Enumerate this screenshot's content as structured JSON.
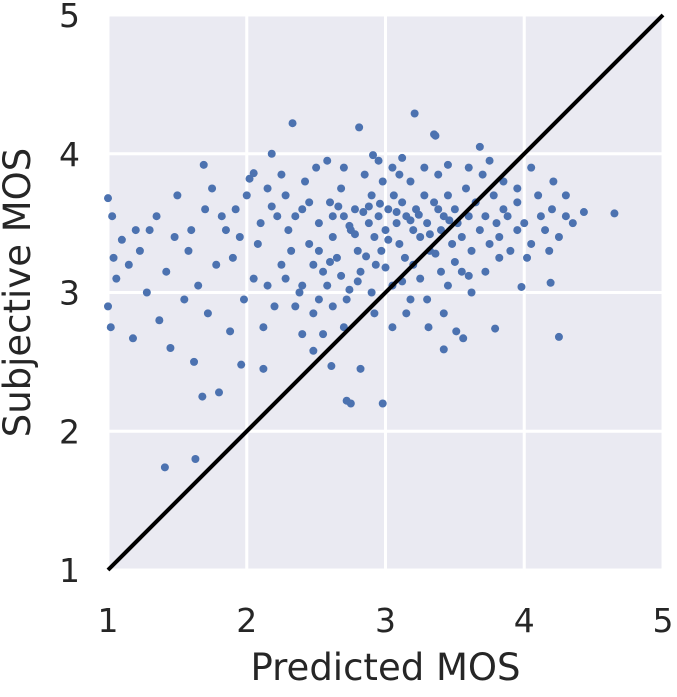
{
  "chart_data": {
    "type": "scatter",
    "title": "",
    "xlabel": "Predicted MOS",
    "ylabel": "Subjective MOS",
    "xlim": [
      1,
      5
    ],
    "ylim": [
      1,
      5
    ],
    "xticks": [
      "1",
      "2",
      "3",
      "4",
      "5"
    ],
    "yticks": [
      "1",
      "2",
      "3",
      "4",
      "5"
    ],
    "grid": true,
    "legend": "none",
    "colors": {
      "background": "#eaeaf2",
      "grid": "#ffffff",
      "points": "#4c72b0",
      "reference_line": "#000000"
    },
    "reference_line": {
      "x": [
        1,
        5
      ],
      "y": [
        1,
        5
      ],
      "label": ""
    },
    "series": [
      {
        "points": [
          [
            2.33,
            4.22
          ],
          [
            3.21,
            4.29
          ],
          [
            2.81,
            4.19
          ],
          [
            3.35,
            4.14
          ],
          [
            3.36,
            4.13
          ],
          [
            3.68,
            4.05
          ],
          [
            2.18,
            4.0
          ],
          [
            2.91,
            3.99
          ],
          [
            3.12,
            3.97
          ],
          [
            1.69,
            3.92
          ],
          [
            2.05,
            3.86
          ],
          [
            4.21,
            3.8
          ],
          [
            4.65,
            3.57
          ],
          [
            4.43,
            3.58
          ],
          [
            4.25,
            2.68
          ],
          [
            3.98,
            3.04
          ],
          [
            4.19,
            3.07
          ],
          [
            3.79,
            2.74
          ],
          [
            3.51,
            2.72
          ],
          [
            3.31,
            2.75
          ],
          [
            3.56,
            2.67
          ],
          [
            3.42,
            2.59
          ],
          [
            1.41,
            1.74
          ],
          [
            1.63,
            1.8
          ],
          [
            1.68,
            2.25
          ],
          [
            1.8,
            2.28
          ],
          [
            2.61,
            2.47
          ],
          [
            2.82,
            2.45
          ],
          [
            2.72,
            2.22
          ],
          [
            2.75,
            2.2
          ],
          [
            2.98,
            2.2
          ],
          [
            2.12,
            2.45
          ],
          [
            2.48,
            2.58
          ],
          [
            1.18,
            2.67
          ],
          [
            1.45,
            2.6
          ],
          [
            1.62,
            2.5
          ],
          [
            1.96,
            2.48
          ],
          [
            1.0,
            3.68
          ],
          [
            1.03,
            3.55
          ],
          [
            1.04,
            3.25
          ],
          [
            1.0,
            2.9
          ],
          [
            1.02,
            2.75
          ],
          [
            1.1,
            3.38
          ],
          [
            1.23,
            3.3
          ],
          [
            1.3,
            3.45
          ],
          [
            1.06,
            3.1
          ],
          [
            1.35,
            3.55
          ],
          [
            1.28,
            3.0
          ],
          [
            1.5,
            3.7
          ],
          [
            1.42,
            3.15
          ],
          [
            1.55,
            2.95
          ],
          [
            1.2,
            3.45
          ],
          [
            1.15,
            3.2
          ],
          [
            1.58,
            3.3
          ],
          [
            1.48,
            3.4
          ],
          [
            1.65,
            3.05
          ],
          [
            1.37,
            2.8
          ],
          [
            1.75,
            3.75
          ],
          [
            1.72,
            2.85
          ],
          [
            1.85,
            3.45
          ],
          [
            1.78,
            3.2
          ],
          [
            1.92,
            3.6
          ],
          [
            1.98,
            2.95
          ],
          [
            1.88,
            2.72
          ],
          [
            2.08,
            3.35
          ],
          [
            2.02,
            3.82
          ],
          [
            2.15,
            3.05
          ],
          [
            2.22,
            3.55
          ],
          [
            2.12,
            2.75
          ],
          [
            2.28,
            3.7
          ],
          [
            2.25,
            3.2
          ],
          [
            2.35,
            2.9
          ],
          [
            2.4,
            3.6
          ],
          [
            2.45,
            3.35
          ],
          [
            2.38,
            3.0
          ],
          [
            2.5,
            3.9
          ],
          [
            2.52,
            3.5
          ],
          [
            2.55,
            3.15
          ],
          [
            2.48,
            2.85
          ],
          [
            2.6,
            3.65
          ],
          [
            2.62,
            3.4
          ],
          [
            2.58,
            3.05
          ],
          [
            2.68,
            3.75
          ],
          [
            2.7,
            3.55
          ],
          [
            2.65,
            3.25
          ],
          [
            2.72,
            2.95
          ],
          [
            2.78,
            3.6
          ],
          [
            2.8,
            3.3
          ],
          [
            2.75,
            3.45
          ],
          [
            2.85,
            3.85
          ],
          [
            2.88,
            3.5
          ],
          [
            2.82,
            3.15
          ],
          [
            2.9,
            3.7
          ],
          [
            2.92,
            3.4
          ],
          [
            2.95,
            3.55
          ],
          [
            2.93,
            3.2
          ],
          [
            2.98,
            3.8
          ],
          [
            3.0,
            3.45
          ],
          [
            3.02,
            3.6
          ],
          [
            2.97,
            3.3
          ],
          [
            3.05,
            3.9
          ],
          [
            3.08,
            3.5
          ],
          [
            3.06,
            3.7
          ],
          [
            3.1,
            3.35
          ],
          [
            3.12,
            3.65
          ],
          [
            3.15,
            3.55
          ],
          [
            3.14,
            3.25
          ],
          [
            3.18,
            3.8
          ],
          [
            3.2,
            3.45
          ],
          [
            3.22,
            3.6
          ],
          [
            3.25,
            3.4
          ],
          [
            3.28,
            3.7
          ],
          [
            3.3,
            3.5
          ],
          [
            3.32,
            3.3
          ],
          [
            3.35,
            3.65
          ],
          [
            3.38,
            3.85
          ],
          [
            3.4,
            3.45
          ],
          [
            3.42,
            3.55
          ],
          [
            3.45,
            3.7
          ],
          [
            3.48,
            3.35
          ],
          [
            3.5,
            3.6
          ],
          [
            3.52,
            3.5
          ],
          [
            3.55,
            3.4
          ],
          [
            3.58,
            3.75
          ],
          [
            3.6,
            3.55
          ],
          [
            3.62,
            3.3
          ],
          [
            3.65,
            3.65
          ],
          [
            3.68,
            3.45
          ],
          [
            3.7,
            3.85
          ],
          [
            3.72,
            3.55
          ],
          [
            3.75,
            3.35
          ],
          [
            3.78,
            3.7
          ],
          [
            3.8,
            3.5
          ],
          [
            3.82,
            3.4
          ],
          [
            3.85,
            3.8
          ],
          [
            3.88,
            3.55
          ],
          [
            3.9,
            3.3
          ],
          [
            3.95,
            3.65
          ],
          [
            4.0,
            3.5
          ],
          [
            4.05,
            3.35
          ],
          [
            4.1,
            3.7
          ],
          [
            4.15,
            3.45
          ],
          [
            4.2,
            3.6
          ],
          [
            4.25,
            3.4
          ],
          [
            4.3,
            3.55
          ],
          [
            4.35,
            3.5
          ],
          [
            3.55,
            3.15
          ],
          [
            3.4,
            3.15
          ],
          [
            3.25,
            3.1
          ],
          [
            3.05,
            3.05
          ],
          [
            2.9,
            3.0
          ],
          [
            2.7,
            2.75
          ],
          [
            2.55,
            2.7
          ],
          [
            3.15,
            2.85
          ],
          [
            3.3,
            2.95
          ],
          [
            3.45,
            3.05
          ],
          [
            2.4,
            2.7
          ],
          [
            2.2,
            2.9
          ],
          [
            2.05,
            3.1
          ],
          [
            1.9,
            3.25
          ],
          [
            1.82,
            3.55
          ],
          [
            1.7,
            3.6
          ],
          [
            1.6,
            3.45
          ],
          [
            2.3,
            3.45
          ],
          [
            2.42,
            3.8
          ],
          [
            2.58,
            3.95
          ],
          [
            2.7,
            3.9
          ],
          [
            2.95,
            3.95
          ],
          [
            3.1,
            3.85
          ],
          [
            3.28,
            3.9
          ],
          [
            3.45,
            3.92
          ],
          [
            3.6,
            3.9
          ],
          [
            3.75,
            3.95
          ],
          [
            3.85,
            3.6
          ],
          [
            3.95,
            3.75
          ],
          [
            4.05,
            3.9
          ],
          [
            4.12,
            3.55
          ],
          [
            4.3,
            3.7
          ],
          [
            2.62,
            3.55
          ],
          [
            2.78,
            3.42
          ],
          [
            2.88,
            3.62
          ],
          [
            3.02,
            3.38
          ],
          [
            3.18,
            3.52
          ],
          [
            3.32,
            3.42
          ],
          [
            2.66,
            3.62
          ],
          [
            2.74,
            3.48
          ],
          [
            2.84,
            3.58
          ],
          [
            2.96,
            3.64
          ],
          [
            3.08,
            3.58
          ],
          [
            3.24,
            3.56
          ],
          [
            3.38,
            3.6
          ],
          [
            3.46,
            3.52
          ],
          [
            2.52,
            3.3
          ],
          [
            2.6,
            3.22
          ],
          [
            2.68,
            3.12
          ],
          [
            2.8,
            3.08
          ],
          [
            2.86,
            3.26
          ],
          [
            3.0,
            3.18
          ],
          [
            3.12,
            3.08
          ],
          [
            3.2,
            3.2
          ],
          [
            3.36,
            3.28
          ],
          [
            3.5,
            3.22
          ],
          [
            2.35,
            3.55
          ],
          [
            2.45,
            3.65
          ],
          [
            2.18,
            3.62
          ],
          [
            2.1,
            3.5
          ],
          [
            2.0,
            3.7
          ],
          [
            1.95,
            3.4
          ],
          [
            2.25,
            3.85
          ],
          [
            2.15,
            3.75
          ],
          [
            2.32,
            3.3
          ],
          [
            2.28,
            3.1
          ],
          [
            2.48,
            3.2
          ],
          [
            2.4,
            3.05
          ],
          [
            2.52,
            2.95
          ],
          [
            2.62,
            2.9
          ],
          [
            2.74,
            3.02
          ],
          [
            2.92,
            2.85
          ],
          [
            3.05,
            2.75
          ],
          [
            3.18,
            2.95
          ],
          [
            3.42,
            2.85
          ],
          [
            3.62,
            3.0
          ],
          [
            3.72,
            3.15
          ],
          [
            3.82,
            3.25
          ],
          [
            3.6,
            3.12
          ],
          [
            3.95,
            3.45
          ],
          [
            4.02,
            3.25
          ],
          [
            4.18,
            3.3
          ]
        ]
      }
    ]
  }
}
